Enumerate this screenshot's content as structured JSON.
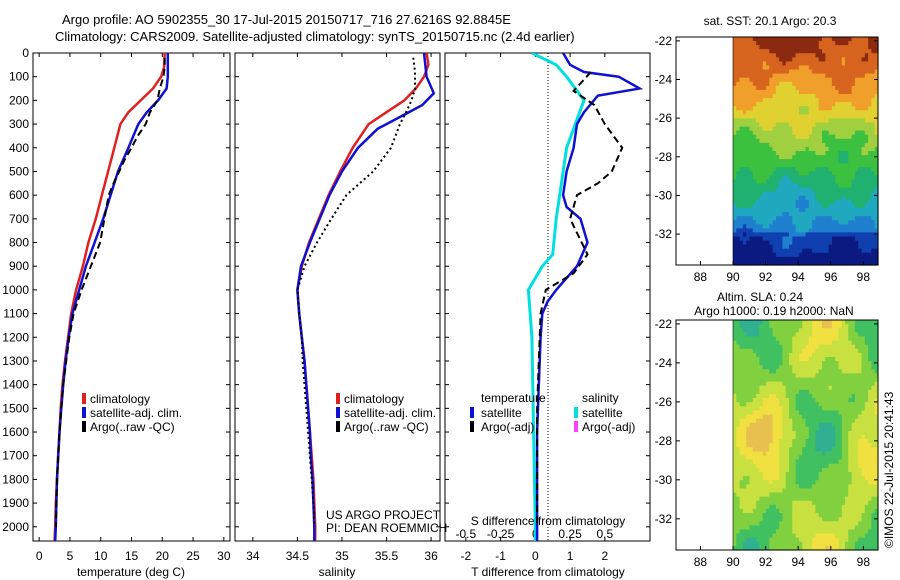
{
  "header": {
    "line1": "Argo profile: AO 5902355_30 17-Jul-2015 20150717_716 27.6216S 92.8845E",
    "line2": "Climatology: CARS2009. Satellite-adjusted climatology: synTS_20150715.nc (2.4d earlier)"
  },
  "colors": {
    "climatology": "#e02020",
    "satellite": "#1010d0",
    "argo": "#000000",
    "sal_satellite": "#00e0e0",
    "sal_argo": "#ff40ff"
  },
  "depth_axis": {
    "ticks": [
      "0",
      "100",
      "200",
      "300",
      "400",
      "500",
      "600",
      "700",
      "800",
      "900",
      "1000",
      "1100",
      "1200",
      "1300",
      "1400",
      "1500",
      "1600",
      "1700",
      "1800",
      "1900",
      "2000"
    ],
    "ylim": [
      2060,
      0
    ]
  },
  "chart_data": [
    {
      "type": "line",
      "id": "temperature",
      "xlabel": "temperature (deg C)",
      "xlim": [
        -1,
        31
      ],
      "xticks": [
        "0",
        "5",
        "10",
        "15",
        "20",
        "25",
        "30"
      ],
      "legend": [
        "climatology",
        "satellite-adj. clim.",
        "Argo(..raw -QC)"
      ],
      "series": [
        {
          "name": "climatology",
          "points": [
            [
              20.4,
              0
            ],
            [
              20.3,
              60
            ],
            [
              19.8,
              100
            ],
            [
              18.5,
              150
            ],
            [
              16.5,
              200
            ],
            [
              14.5,
              250
            ],
            [
              13.2,
              300
            ],
            [
              12.2,
              400
            ],
            [
              11.2,
              500
            ],
            [
              10.2,
              600
            ],
            [
              9.2,
              700
            ],
            [
              8.0,
              800
            ],
            [
              7.1,
              900
            ],
            [
              6.0,
              1000
            ],
            [
              5.2,
              1100
            ],
            [
              4.7,
              1200
            ],
            [
              4.2,
              1300
            ],
            [
              3.8,
              1400
            ],
            [
              3.5,
              1500
            ],
            [
              3.3,
              1600
            ],
            [
              3.1,
              1700
            ],
            [
              2.9,
              1800
            ],
            [
              2.7,
              1900
            ],
            [
              2.6,
              2000
            ],
            [
              2.5,
              2060
            ]
          ]
        },
        {
          "name": "satellite-adj. clim.",
          "points": [
            [
              20.9,
              0
            ],
            [
              20.9,
              100
            ],
            [
              20.7,
              150
            ],
            [
              19.3,
              200
            ],
            [
              17.5,
              250
            ],
            [
              16.1,
              300
            ],
            [
              14.5,
              400
            ],
            [
              12.8,
              500
            ],
            [
              11.6,
              600
            ],
            [
              10.4,
              700
            ],
            [
              9.0,
              800
            ],
            [
              7.6,
              900
            ],
            [
              6.5,
              1000
            ],
            [
              5.4,
              1100
            ],
            [
              4.8,
              1200
            ],
            [
              4.3,
              1300
            ],
            [
              3.9,
              1400
            ],
            [
              3.6,
              1500
            ],
            [
              3.3,
              1600
            ],
            [
              3.1,
              1700
            ],
            [
              2.9,
              1800
            ],
            [
              2.8,
              1900
            ],
            [
              2.7,
              2000
            ],
            [
              2.6,
              2060
            ]
          ]
        },
        {
          "name": "Argo(..raw -QC)",
          "points": [
            [
              20.4,
              20
            ],
            [
              20.4,
              60
            ],
            [
              20.2,
              100
            ],
            [
              19.6,
              150
            ],
            [
              19.2,
              200
            ],
            [
              18.0,
              250
            ],
            [
              17.3,
              300
            ],
            [
              16.0,
              350
            ],
            [
              15.0,
              400
            ],
            [
              13.9,
              450
            ],
            [
              13.0,
              500
            ],
            [
              12.1,
              550
            ],
            [
              11.3,
              600
            ],
            [
              10.6,
              700
            ],
            [
              9.9,
              800
            ],
            [
              8.4,
              900
            ],
            [
              6.9,
              1000
            ],
            [
              5.6,
              1100
            ],
            [
              4.9,
              1200
            ],
            [
              4.4,
              1300
            ],
            [
              3.9,
              1400
            ],
            [
              3.6,
              1500
            ],
            [
              3.3,
              1600
            ],
            [
              3.1,
              1700
            ],
            [
              2.9,
              1800
            ],
            [
              2.8,
              1900
            ],
            [
              2.7,
              2000
            ]
          ]
        }
      ]
    },
    {
      "type": "line",
      "id": "salinity",
      "xlabel": "salinity",
      "xlim": [
        33.8,
        36.1
      ],
      "xticks": [
        "34",
        "34.5",
        "35",
        "35.5",
        "36"
      ],
      "legend": [
        "climatology",
        "satellite-adj. clim.",
        "Argo(..raw -QC)"
      ],
      "series": [
        {
          "name": "climatology",
          "points": [
            [
              35.95,
              0
            ],
            [
              35.97,
              50
            ],
            [
              35.92,
              100
            ],
            [
              35.83,
              150
            ],
            [
              35.7,
              200
            ],
            [
              35.5,
              250
            ],
            [
              35.3,
              300
            ],
            [
              35.12,
              400
            ],
            [
              34.98,
              500
            ],
            [
              34.85,
              600
            ],
            [
              34.74,
              700
            ],
            [
              34.63,
              800
            ],
            [
              34.55,
              900
            ],
            [
              34.5,
              1000
            ],
            [
              34.52,
              1100
            ],
            [
              34.55,
              1200
            ],
            [
              34.58,
              1300
            ],
            [
              34.6,
              1400
            ],
            [
              34.62,
              1500
            ],
            [
              34.64,
              1600
            ],
            [
              34.66,
              1700
            ],
            [
              34.68,
              1800
            ],
            [
              34.69,
              1900
            ],
            [
              34.7,
              2000
            ],
            [
              34.7,
              2060
            ]
          ]
        },
        {
          "name": "satellite-adj. clim.",
          "points": [
            [
              35.92,
              0
            ],
            [
              35.95,
              100
            ],
            [
              36.03,
              170
            ],
            [
              35.9,
              220
            ],
            [
              35.65,
              270
            ],
            [
              35.4,
              320
            ],
            [
              35.18,
              400
            ],
            [
              35.0,
              500
            ],
            [
              34.86,
              600
            ],
            [
              34.75,
              700
            ],
            [
              34.64,
              800
            ],
            [
              34.54,
              900
            ],
            [
              34.5,
              1000
            ],
            [
              34.52,
              1100
            ],
            [
              34.55,
              1200
            ],
            [
              34.58,
              1300
            ],
            [
              34.6,
              1400
            ],
            [
              34.62,
              1500
            ],
            [
              34.64,
              1600
            ],
            [
              34.65,
              1700
            ],
            [
              34.67,
              1800
            ],
            [
              34.68,
              1900
            ],
            [
              34.69,
              2000
            ],
            [
              34.69,
              2060
            ]
          ]
        },
        {
          "name": "Argo(..raw -QC)",
          "points": [
            [
              35.8,
              20
            ],
            [
              35.82,
              80
            ],
            [
              35.82,
              150
            ],
            [
              35.78,
              200
            ],
            [
              35.72,
              250
            ],
            [
              35.65,
              300
            ],
            [
              35.55,
              400
            ],
            [
              35.35,
              500
            ],
            [
              35.05,
              600
            ],
            [
              34.88,
              700
            ],
            [
              34.72,
              800
            ],
            [
              34.58,
              900
            ],
            [
              34.5,
              1000
            ],
            [
              34.52,
              1100
            ],
            [
              34.55,
              1200
            ],
            [
              34.56,
              1300
            ],
            [
              34.58,
              1400
            ],
            [
              34.6,
              1500
            ],
            [
              34.62,
              1600
            ],
            [
              34.64,
              1700
            ],
            [
              34.66,
              1800
            ],
            [
              34.68,
              1900
            ],
            [
              34.69,
              2000
            ]
          ]
        }
      ],
      "annotation": [
        "US ARGO PROJECT",
        "PI: DEAN ROEMMICH"
      ]
    },
    {
      "type": "line",
      "id": "difference",
      "xlabel": "T difference from climatology",
      "x2label": "S difference from climatology",
      "xlim": [
        -2.6,
        3.3
      ],
      "xticks": [
        "-2",
        "-1",
        "0",
        "1",
        "2"
      ],
      "x2ticks": [
        "-0.5",
        "-0.25",
        "0",
        "0.25",
        "0.5"
      ],
      "legend_left_title": "temperature",
      "legend_right_title": "salinity",
      "legend_left": [
        "satellite",
        "Argo(-adj)"
      ],
      "legend_right": [
        "satellite",
        "Argo(-adj)"
      ],
      "series": [
        {
          "name": "temperature satellite",
          "points": [
            [
              0.8,
              0
            ],
            [
              1.0,
              50
            ],
            [
              1.4,
              80
            ],
            [
              2.4,
              100
            ],
            [
              3.0,
              150
            ],
            [
              1.8,
              180
            ],
            [
              1.4,
              250
            ],
            [
              1.2,
              300
            ],
            [
              1.1,
              400
            ],
            [
              0.9,
              500
            ],
            [
              0.8,
              600
            ],
            [
              0.9,
              650
            ],
            [
              1.3,
              700
            ],
            [
              1.5,
              800
            ],
            [
              1.2,
              900
            ],
            [
              0.6,
              1000
            ],
            [
              0.35,
              1050
            ],
            [
              0.2,
              1100
            ],
            [
              0.15,
              1200
            ],
            [
              0.1,
              1400
            ],
            [
              0.05,
              1600
            ],
            [
              0.05,
              1800
            ],
            [
              0.05,
              2000
            ],
            [
              0.05,
              2060
            ]
          ]
        },
        {
          "name": "temperature Argo(-adj)",
          "points": [
            [
              1.6,
              80
            ],
            [
              1.1,
              160
            ],
            [
              1.7,
              220
            ],
            [
              2.0,
              300
            ],
            [
              2.5,
              400
            ],
            [
              2.2,
              500
            ],
            [
              1.8,
              550
            ],
            [
              1.2,
              600
            ],
            [
              1.0,
              700
            ],
            [
              1.5,
              850
            ],
            [
              1.1,
              930
            ],
            [
              0.3,
              1000
            ],
            [
              0.15,
              1100
            ],
            [
              0.1,
              1300
            ],
            [
              0.05,
              1500
            ],
            [
              0.05,
              1800
            ],
            [
              0.05,
              2000
            ]
          ]
        },
        {
          "name": "salinity satellite",
          "points": [
            [
              -0.1,
              0
            ],
            [
              0.6,
              50
            ],
            [
              0.9,
              100
            ],
            [
              1.4,
              200
            ],
            [
              0.9,
              400
            ],
            [
              0.7,
              600
            ],
            [
              0.6,
              700
            ],
            [
              0.5,
              850
            ],
            [
              0.2,
              900
            ],
            [
              -0.2,
              1000
            ],
            [
              -0.1,
              1200
            ],
            [
              -0.05,
              1600
            ],
            [
              0.0,
              2000
            ],
            [
              0.0,
              2060
            ]
          ]
        }
      ]
    }
  ],
  "maps": [
    {
      "id": "sst",
      "title": "sat. SST: 20.1 Argo: 20.3",
      "yticks": [
        "-22",
        "-24",
        "-26",
        "-28",
        "-30",
        "-32"
      ],
      "xticks": [
        "88",
        "90",
        "92",
        "94",
        "96",
        "98"
      ],
      "colormap": [
        "#8b2a10",
        "#d7641e",
        "#f0a02a",
        "#e0d030",
        "#a0d040",
        "#3cc040",
        "#20b070",
        "#20a8c0",
        "#2080d0",
        "#1040b0",
        "#0a1a80"
      ]
    },
    {
      "id": "sla",
      "title1": "Altim. SLA: 0.24",
      "title2": "Argo h1000: 0.19 h2000: NaN",
      "yticks": [
        "-22",
        "-24",
        "-26",
        "-28",
        "-30",
        "-32"
      ],
      "xticks": [
        "88",
        "90",
        "92",
        "94",
        "96",
        "98"
      ],
      "colormap": [
        "#e8c050",
        "#f0e040",
        "#c8e040",
        "#80d040",
        "#40c060",
        "#30b090"
      ]
    }
  ],
  "side_note": "©IMOS 22-Jul-2015 20:41:43"
}
